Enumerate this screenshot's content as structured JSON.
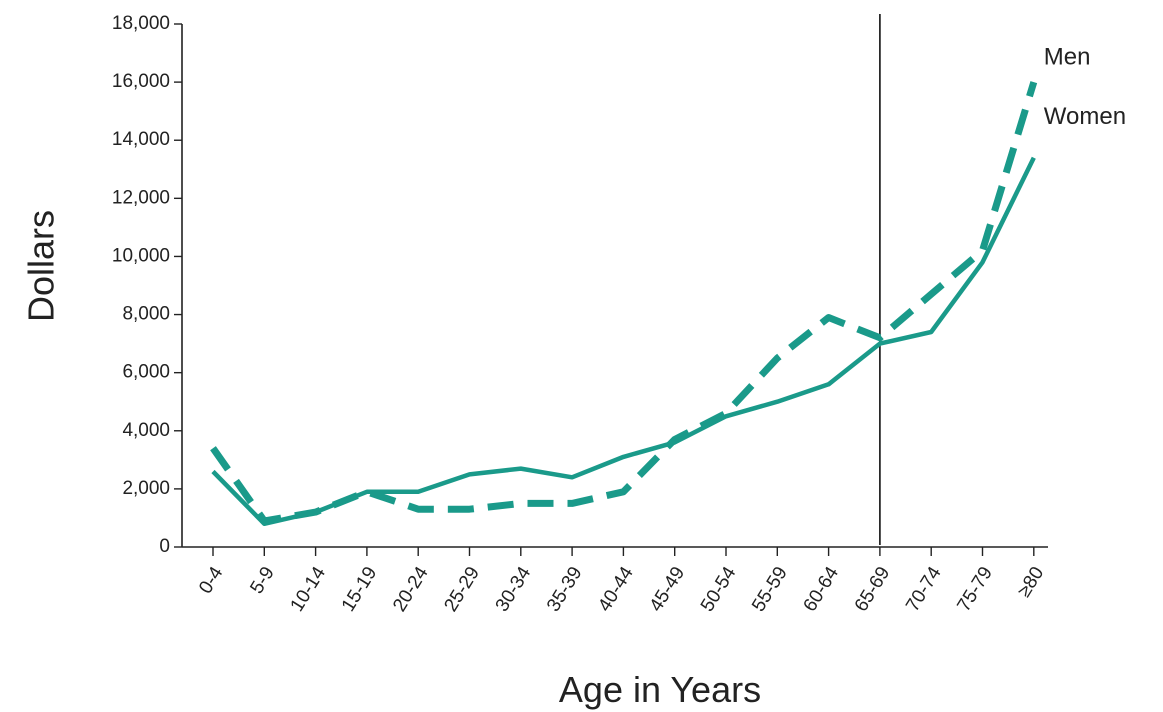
{
  "chart_data": {
    "type": "line",
    "xlabel": "Age in Years",
    "ylabel": "Dollars",
    "categories": [
      "0-4",
      "5-9",
      "10-14",
      "15-19",
      "20-24",
      "25-29",
      "30-34",
      "35-39",
      "40-44",
      "45-49",
      "50-54",
      "55-59",
      "60-64",
      "65-69",
      "70-74",
      "75-79",
      "≥80"
    ],
    "ylim": [
      0,
      18000
    ],
    "yticks": [
      0,
      2000,
      4000,
      6000,
      8000,
      10000,
      12000,
      14000,
      16000,
      18000
    ],
    "ytick_labels": [
      "0",
      "2,000",
      "4,000",
      "6,000",
      "8,000",
      "10,000",
      "12,000",
      "14,000",
      "16,000",
      "18,000"
    ],
    "grid": false,
    "legend": "none; series labeled directly at right end of lines",
    "reference_line": {
      "category": "65-69",
      "style": "solid vertical line"
    },
    "series": [
      {
        "name": "Men",
        "style": "dashed",
        "color": "#1a9a8a",
        "values": [
          3400,
          900,
          1200,
          1900,
          1300,
          1300,
          1500,
          1500,
          1900,
          3700,
          4600,
          6500,
          7900,
          7200,
          8700,
          10200,
          16000
        ]
      },
      {
        "name": "Women",
        "style": "solid",
        "color": "#1a9a8a",
        "values": [
          2600,
          800,
          1200,
          1900,
          1900,
          2500,
          2700,
          2400,
          3100,
          3600,
          4500,
          5000,
          5600,
          7000,
          7400,
          9800,
          13400
        ]
      }
    ]
  }
}
